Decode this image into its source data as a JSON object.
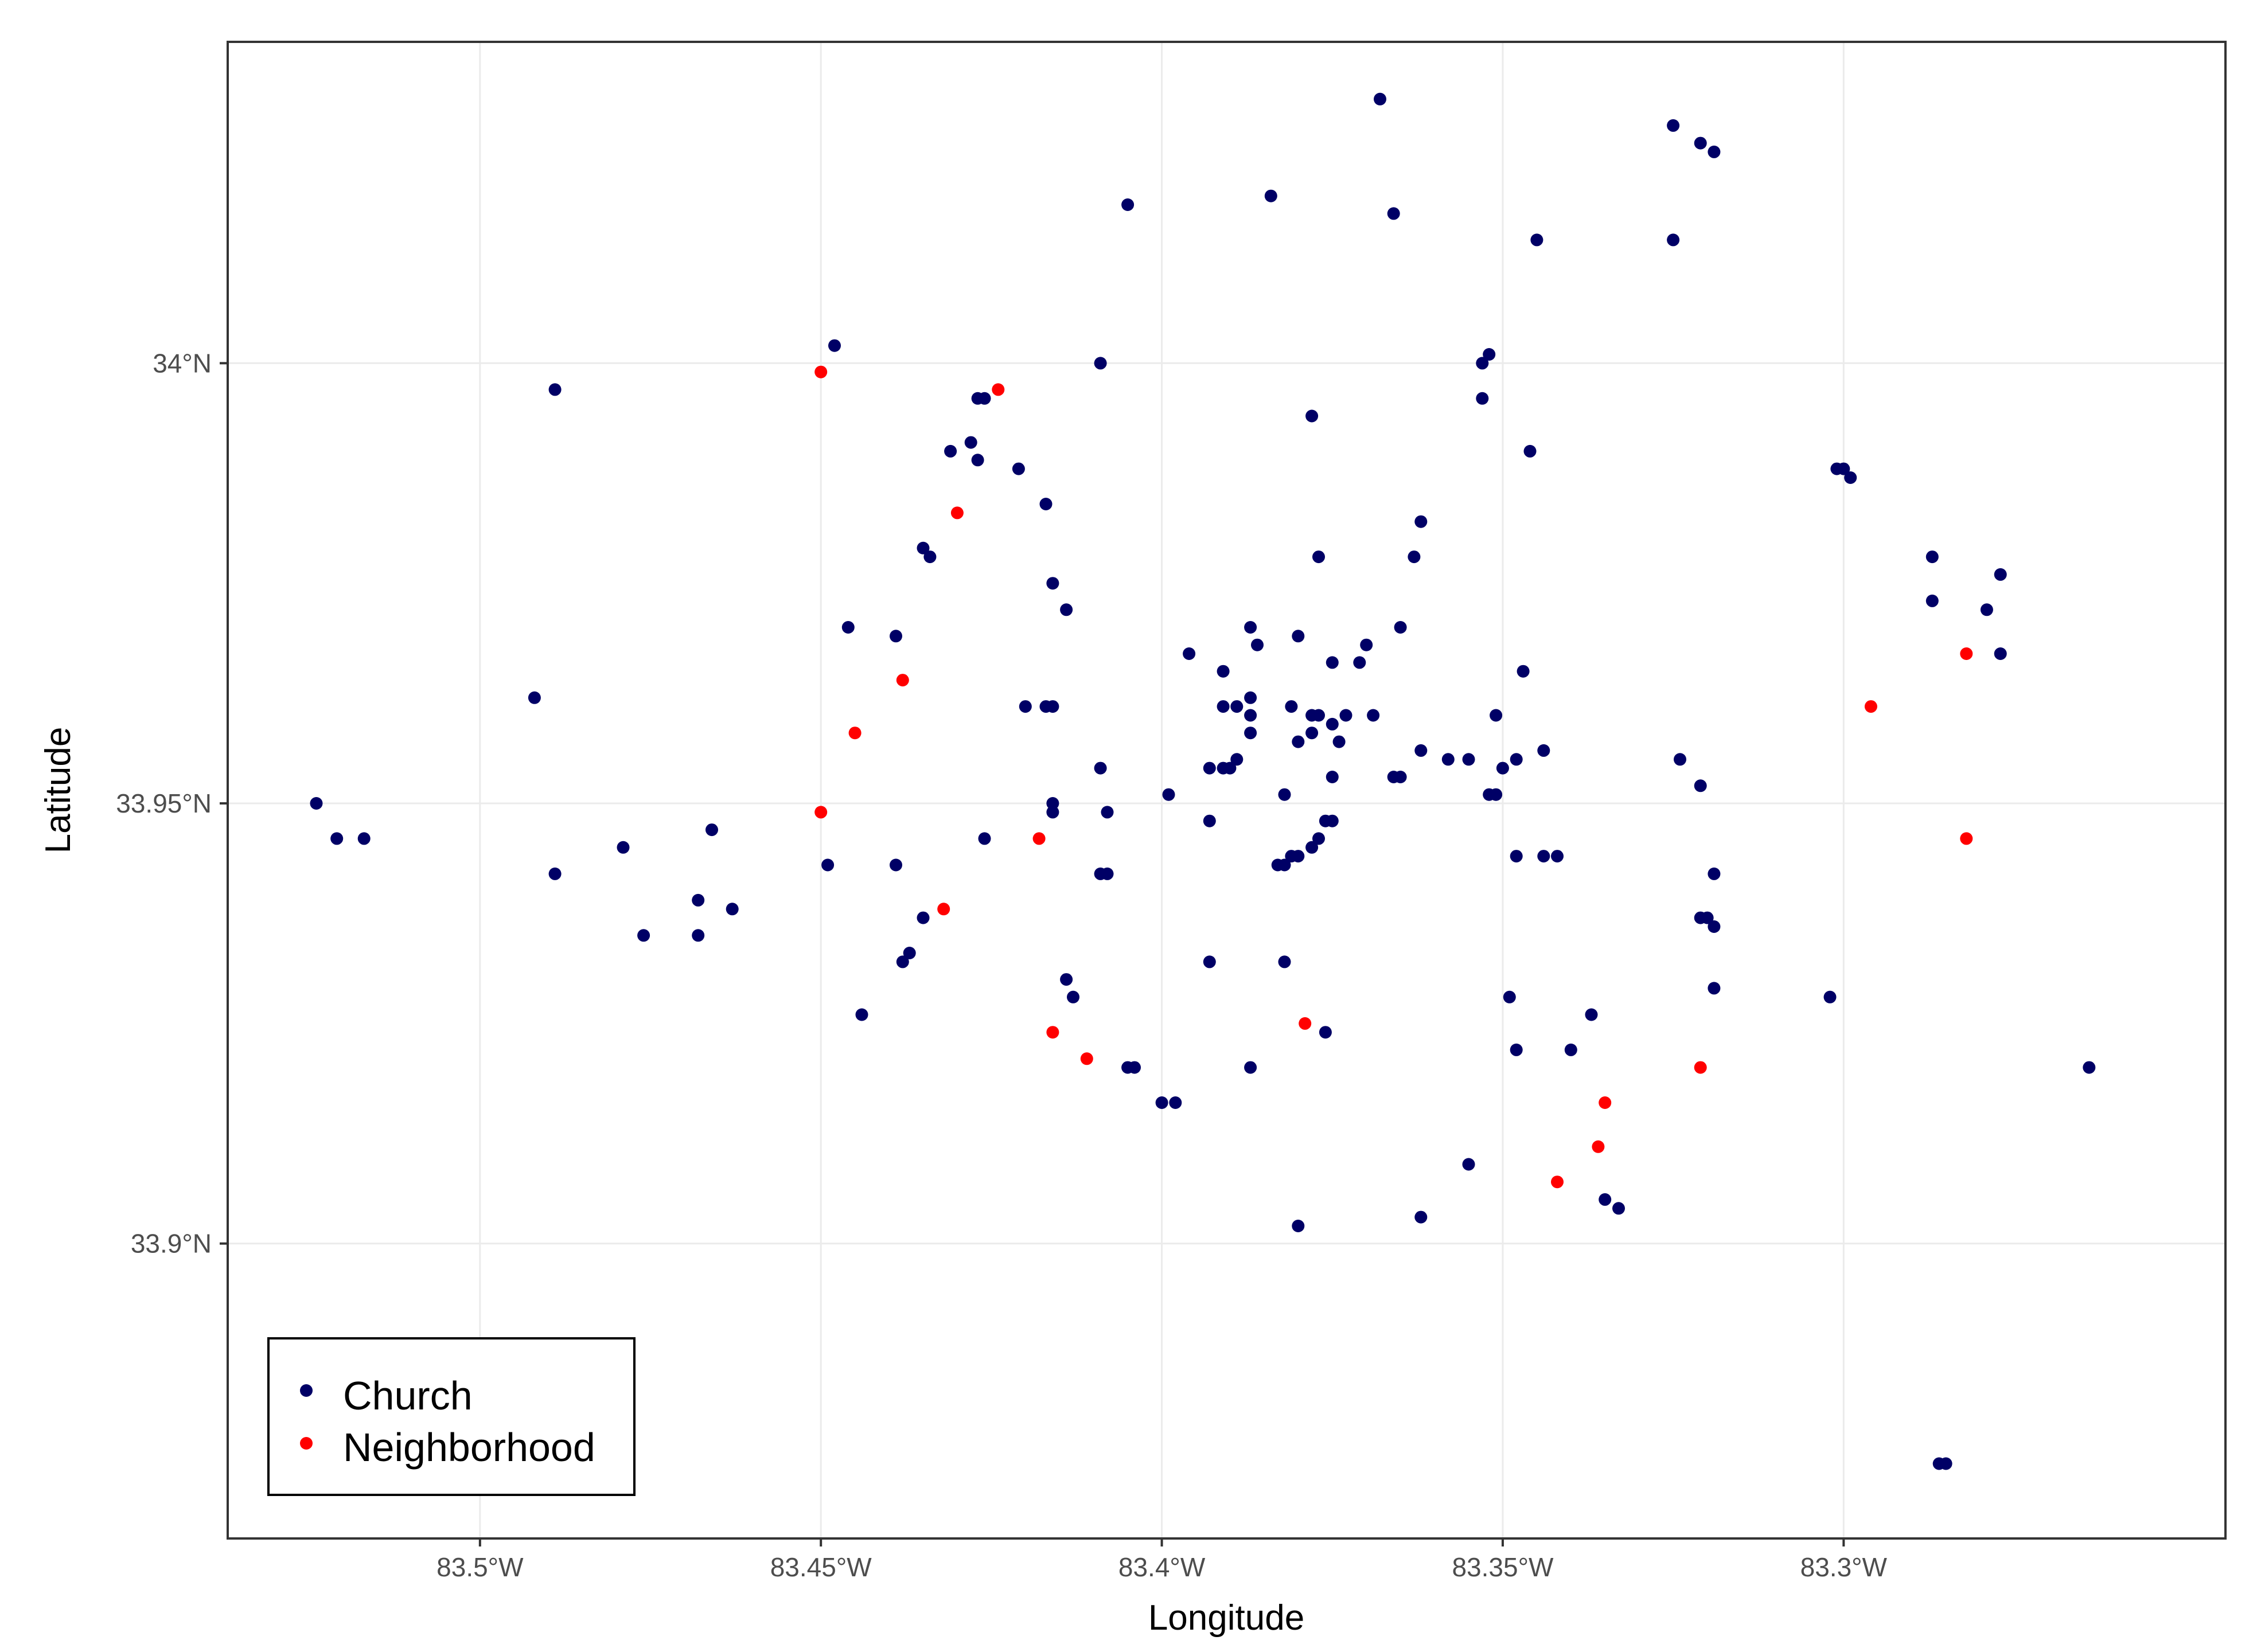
{
  "chart_data": {
    "type": "scatter",
    "xlabel": "Longitude",
    "ylabel": "Latitude",
    "xlim": [
      -83.537,
      -83.244
    ],
    "ylim": [
      33.8665,
      34.0365
    ],
    "grid": true,
    "legend_position": "bottom-left",
    "x_ticks": [
      {
        "value": -83.5,
        "label": "83.5°W"
      },
      {
        "value": -83.45,
        "label": "83.45°W"
      },
      {
        "value": -83.4,
        "label": "83.4°W"
      },
      {
        "value": -83.35,
        "label": "83.35°W"
      },
      {
        "value": -83.3,
        "label": "83.3°W"
      }
    ],
    "y_ticks": [
      {
        "value": 33.9,
        "label": "33.9°N"
      },
      {
        "value": 33.95,
        "label": "33.95°N"
      },
      {
        "value": 34.0,
        "label": "34°N"
      }
    ],
    "series": [
      {
        "name": "Church",
        "color": "#000066",
        "points": [
          [
            -83.368,
            34.03
          ],
          [
            -83.325,
            34.027
          ],
          [
            -83.321,
            34.025
          ],
          [
            -83.319,
            34.024
          ],
          [
            -83.384,
            34.019
          ],
          [
            -83.405,
            34.018
          ],
          [
            -83.366,
            34.017
          ],
          [
            -83.345,
            34.014
          ],
          [
            -83.325,
            34.014
          ],
          [
            -83.448,
            34.002
          ],
          [
            -83.352,
            34.001
          ],
          [
            -83.353,
            34.0
          ],
          [
            -83.409,
            34.0
          ],
          [
            -83.489,
            33.997
          ],
          [
            -83.353,
            33.996
          ],
          [
            -83.426,
            33.996
          ],
          [
            -83.427,
            33.996
          ],
          [
            -83.378,
            33.994
          ],
          [
            -83.428,
            33.991
          ],
          [
            -83.431,
            33.99
          ],
          [
            -83.346,
            33.99
          ],
          [
            -83.427,
            33.989
          ],
          [
            -83.421,
            33.988
          ],
          [
            -83.301,
            33.988
          ],
          [
            -83.3,
            33.988
          ],
          [
            -83.299,
            33.987
          ],
          [
            -83.417,
            33.984
          ],
          [
            -83.362,
            33.982
          ],
          [
            -83.435,
            33.979
          ],
          [
            -83.377,
            33.978
          ],
          [
            -83.434,
            33.978
          ],
          [
            -83.363,
            33.978
          ],
          [
            -83.287,
            33.978
          ],
          [
            -83.277,
            33.976
          ],
          [
            -83.416,
            33.975
          ],
          [
            -83.287,
            33.973
          ],
          [
            -83.279,
            33.972
          ],
          [
            -83.414,
            33.972
          ],
          [
            -83.446,
            33.97
          ],
          [
            -83.365,
            33.97
          ],
          [
            -83.387,
            33.97
          ],
          [
            -83.439,
            33.969
          ],
          [
            -83.37,
            33.968
          ],
          [
            -83.38,
            33.969
          ],
          [
            -83.386,
            33.968
          ],
          [
            -83.396,
            33.967
          ],
          [
            -83.277,
            33.967
          ],
          [
            -83.375,
            33.966
          ],
          [
            -83.371,
            33.966
          ],
          [
            -83.391,
            33.965
          ],
          [
            -83.347,
            33.965
          ],
          [
            -83.492,
            33.962
          ],
          [
            -83.387,
            33.962
          ],
          [
            -83.391,
            33.961
          ],
          [
            -83.42,
            33.961
          ],
          [
            -83.417,
            33.961
          ],
          [
            -83.416,
            33.961
          ],
          [
            -83.381,
            33.961
          ],
          [
            -83.389,
            33.961
          ],
          [
            -83.387,
            33.96
          ],
          [
            -83.378,
            33.96
          ],
          [
            -83.377,
            33.96
          ],
          [
            -83.373,
            33.96
          ],
          [
            -83.369,
            33.96
          ],
          [
            -83.351,
            33.96
          ],
          [
            -83.375,
            33.959
          ],
          [
            -83.387,
            33.958
          ],
          [
            -83.378,
            33.958
          ],
          [
            -83.38,
            33.957
          ],
          [
            -83.374,
            33.957
          ],
          [
            -83.344,
            33.956
          ],
          [
            -83.362,
            33.956
          ],
          [
            -83.355,
            33.955
          ],
          [
            -83.358,
            33.955
          ],
          [
            -83.348,
            33.955
          ],
          [
            -83.389,
            33.955
          ],
          [
            -83.324,
            33.955
          ],
          [
            -83.391,
            33.954
          ],
          [
            -83.393,
            33.954
          ],
          [
            -83.39,
            33.954
          ],
          [
            -83.35,
            33.954
          ],
          [
            -83.409,
            33.954
          ],
          [
            -83.375,
            33.953
          ],
          [
            -83.366,
            33.953
          ],
          [
            -83.365,
            33.953
          ],
          [
            -83.321,
            33.952
          ],
          [
            -83.382,
            33.951
          ],
          [
            -83.399,
            33.951
          ],
          [
            -83.352,
            33.951
          ],
          [
            -83.351,
            33.951
          ],
          [
            -83.416,
            33.95
          ],
          [
            -83.416,
            33.949
          ],
          [
            -83.524,
            33.95
          ],
          [
            -83.408,
            33.949
          ],
          [
            -83.376,
            33.948
          ],
          [
            -83.375,
            33.948
          ],
          [
            -83.393,
            33.948
          ],
          [
            -83.466,
            33.947
          ],
          [
            -83.521,
            33.946
          ],
          [
            -83.517,
            33.946
          ],
          [
            -83.426,
            33.946
          ],
          [
            -83.377,
            33.946
          ],
          [
            -83.378,
            33.945
          ],
          [
            -83.479,
            33.945
          ],
          [
            -83.348,
            33.944
          ],
          [
            -83.344,
            33.944
          ],
          [
            -83.342,
            33.944
          ],
          [
            -83.38,
            33.944
          ],
          [
            -83.381,
            33.944
          ],
          [
            -83.382,
            33.943
          ],
          [
            -83.383,
            33.943
          ],
          [
            -83.449,
            33.943
          ],
          [
            -83.439,
            33.943
          ],
          [
            -83.489,
            33.942
          ],
          [
            -83.409,
            33.942
          ],
          [
            -83.408,
            33.942
          ],
          [
            -83.319,
            33.942
          ],
          [
            -83.468,
            33.939
          ],
          [
            -83.463,
            33.938
          ],
          [
            -83.435,
            33.937
          ],
          [
            -83.321,
            33.937
          ],
          [
            -83.32,
            33.937
          ],
          [
            -83.319,
            33.936
          ],
          [
            -83.476,
            33.935
          ],
          [
            -83.468,
            33.935
          ],
          [
            -83.437,
            33.933
          ],
          [
            -83.438,
            33.932
          ],
          [
            -83.393,
            33.932
          ],
          [
            -83.382,
            33.932
          ],
          [
            -83.414,
            33.93
          ],
          [
            -83.319,
            33.929
          ],
          [
            -83.413,
            33.928
          ],
          [
            -83.349,
            33.928
          ],
          [
            -83.302,
            33.928
          ],
          [
            -83.337,
            33.926
          ],
          [
            -83.444,
            33.926
          ],
          [
            -83.376,
            33.924
          ],
          [
            -83.348,
            33.922
          ],
          [
            -83.34,
            33.922
          ],
          [
            -83.387,
            33.92
          ],
          [
            -83.405,
            33.92
          ],
          [
            -83.404,
            33.92
          ],
          [
            -83.264,
            33.92
          ],
          [
            -83.4,
            33.916
          ],
          [
            -83.398,
            33.916
          ],
          [
            -83.355,
            33.909
          ],
          [
            -83.335,
            33.905
          ],
          [
            -83.333,
            33.904
          ],
          [
            -83.362,
            33.903
          ],
          [
            -83.38,
            33.902
          ],
          [
            -83.286,
            33.875
          ],
          [
            -83.285,
            33.875
          ]
        ]
      },
      {
        "name": "Neighborhood",
        "color": "#ff0000",
        "points": [
          [
            -83.45,
            33.999
          ],
          [
            -83.424,
            33.997
          ],
          [
            -83.43,
            33.983
          ],
          [
            -83.438,
            33.964
          ],
          [
            -83.282,
            33.967
          ],
          [
            -83.296,
            33.961
          ],
          [
            -83.445,
            33.958
          ],
          [
            -83.45,
            33.949
          ],
          [
            -83.418,
            33.946
          ],
          [
            -83.282,
            33.946
          ],
          [
            -83.432,
            33.938
          ],
          [
            -83.416,
            33.924
          ],
          [
            -83.379,
            33.925
          ],
          [
            -83.411,
            33.921
          ],
          [
            -83.321,
            33.92
          ],
          [
            -83.335,
            33.916
          ],
          [
            -83.336,
            33.911
          ],
          [
            -83.342,
            33.907
          ]
        ]
      }
    ]
  }
}
